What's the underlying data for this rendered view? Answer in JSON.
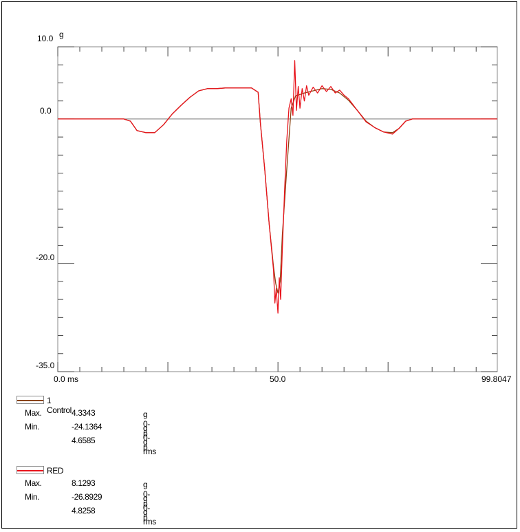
{
  "chart_data": {
    "type": "line",
    "unit": "g",
    "x_unit": "ms",
    "xlim": [
      0,
      99.8047
    ],
    "ylim": [
      -35,
      10
    ],
    "x_tick_labels": [
      "0.0",
      "50.0",
      "99.8047"
    ],
    "y_tick_labels": [
      "10.0",
      "0.0",
      "-20.0",
      "-35.0"
    ],
    "y_tick_values": [
      10,
      0,
      -20,
      -35
    ],
    "series": [
      {
        "name": "1 Control",
        "color": "#8B4513",
        "x": [
          0,
          5,
          10,
          15,
          16.5,
          18,
          20,
          22,
          24,
          26,
          28,
          30,
          32,
          34,
          36,
          38,
          40,
          42,
          44,
          45.5,
          46,
          47,
          48,
          49,
          49.5,
          50,
          50.5,
          51,
          52,
          53,
          54,
          55,
          56,
          58,
          60,
          62,
          64,
          66,
          68,
          70,
          72,
          74,
          76,
          77.5,
          79,
          80.5,
          82,
          85,
          90,
          95,
          99.8
        ],
        "y": [
          0,
          0,
          0,
          0,
          -0.3,
          -1.6,
          -1.9,
          -1.9,
          -0.8,
          0.7,
          1.9,
          3,
          3.9,
          4.2,
          4.2,
          4.3,
          4.3,
          4.3,
          4.3,
          3.7,
          -0.5,
          -7,
          -14.5,
          -20.5,
          -22.8,
          -24.1,
          -22.5,
          -16,
          -7,
          1.5,
          3.2,
          3.4,
          3.6,
          3.9,
          4.2,
          4.1,
          3.6,
          2.6,
          1.2,
          -0.3,
          -1.2,
          -1.8,
          -1.9,
          -1.3,
          -0.3,
          0,
          0,
          0,
          0,
          0,
          0
        ]
      },
      {
        "name": "RED",
        "color": "#E8141C",
        "x": [
          0,
          5,
          10,
          15,
          16.5,
          18,
          20,
          22,
          24,
          26,
          28,
          30,
          32,
          34,
          36,
          38,
          40,
          42,
          44,
          45.5,
          46,
          47,
          48,
          49,
          49.3,
          49.6,
          50,
          50.3,
          50.6,
          51,
          51.5,
          52,
          52.5,
          53,
          53.4,
          53.8,
          54.2,
          54.6,
          55,
          55.5,
          56,
          56.5,
          57,
          58,
          59,
          60,
          61,
          62,
          63,
          64,
          65,
          66,
          68,
          70,
          72,
          74,
          76,
          77.5,
          79,
          80.5,
          82,
          85,
          90,
          95,
          99.8
        ],
        "y": [
          0,
          0,
          0,
          0,
          -0.3,
          -1.6,
          -1.9,
          -1.9,
          -0.8,
          0.7,
          1.9,
          3,
          3.9,
          4.2,
          4.2,
          4.3,
          4.3,
          4.3,
          4.3,
          3.7,
          -0.5,
          -7,
          -14.5,
          -21,
          -25.5,
          -23.5,
          -26.9,
          -22,
          -25,
          -18,
          -10,
          -3,
          1.5,
          2.8,
          0.5,
          8.1,
          1.2,
          4.5,
          1.5,
          4.2,
          2.5,
          4.6,
          3.3,
          4.4,
          3.6,
          4.6,
          3.8,
          4.5,
          3.6,
          4.0,
          3.3,
          2.8,
          1.2,
          -0.4,
          -1.2,
          -1.8,
          -2.1,
          -1.3,
          -0.3,
          0,
          0,
          0,
          0,
          0,
          0
        ]
      }
    ],
    "legend": [
      {
        "name": "1 Control",
        "stats": [
          {
            "label": "Max.",
            "value": "4.3343",
            "unit": "g 0-p"
          },
          {
            "label": "Min.",
            "value": "-24.1364",
            "unit": "g 0-p"
          },
          {
            "label": "",
            "value": "4.6585",
            "unit": "g rms"
          }
        ]
      },
      {
        "name": "RED",
        "stats": [
          {
            "label": "Max.",
            "value": "8.1293",
            "unit": "g 0-p"
          },
          {
            "label": "Min.",
            "value": "-26.8929",
            "unit": "g 0-p"
          },
          {
            "label": "",
            "value": "4.8258",
            "unit": "g rms"
          }
        ]
      }
    ]
  }
}
